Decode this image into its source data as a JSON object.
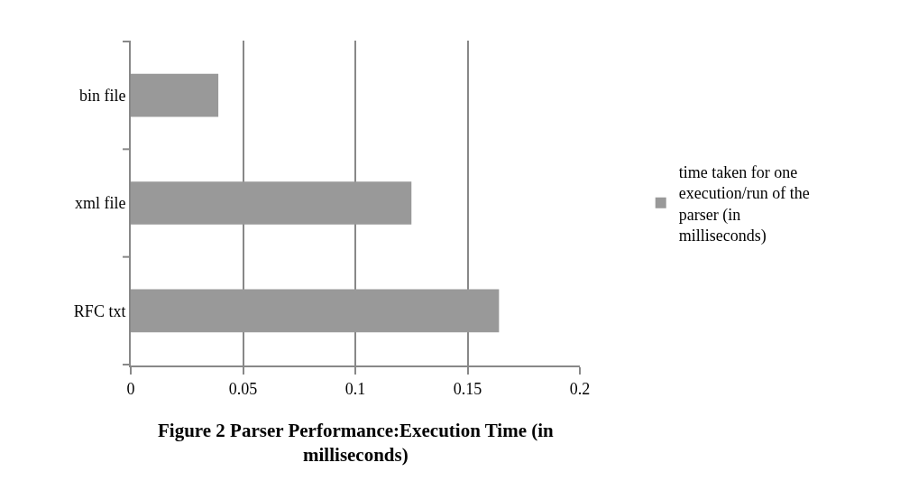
{
  "chart_data": {
    "type": "bar",
    "orientation": "horizontal",
    "title": "Figure 2 Parser Performance:Execution Time (in milliseconds)",
    "categories": [
      "bin file",
      "xml file",
      "RFC txt"
    ],
    "series": [
      {
        "name": "time taken for one execution/run of the parser (in milliseconds)",
        "color": "#999999",
        "values": [
          0.039,
          0.125,
          0.164
        ]
      }
    ],
    "xlim": [
      0,
      0.2
    ],
    "xticks": [
      0,
      0.05,
      0.1,
      0.15,
      0.2
    ],
    "grid": "x",
    "legend": "right"
  }
}
